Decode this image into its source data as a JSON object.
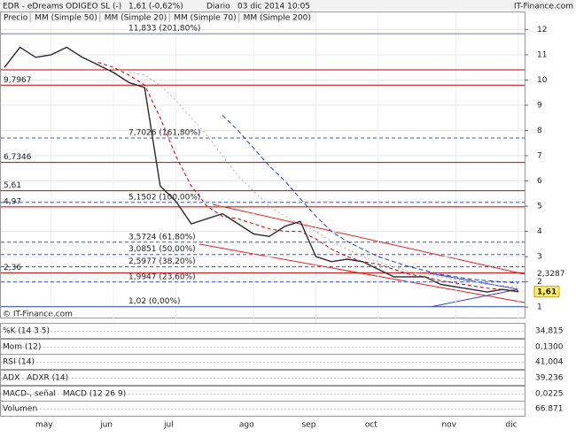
{
  "header": {
    "title": "EDR - eDreams ODIGEO SL (-)",
    "quote": "1,61 (-0,62%)",
    "period": "Diario",
    "date": "03 dic 2014 10:05",
    "source": "IT-Finance.com"
  },
  "copyright": "© IT-Finance.com",
  "chart_data": {
    "type": "line",
    "categories": [
      null,
      null,
      null,
      "may",
      null,
      null,
      null,
      "jun",
      null,
      null,
      null,
      "jul",
      null,
      null,
      null,
      null,
      "ago",
      null,
      null,
      null,
      "sep",
      null,
      null,
      null,
      "oct",
      null,
      null,
      null,
      null,
      "nov",
      null,
      null,
      null,
      "dic"
    ],
    "series": [
      {
        "name": "Precio",
        "color": "#2a2a2a",
        "values": [
          10.5,
          11.3,
          10.9,
          11.0,
          11.3,
          10.9,
          10.6,
          10.3,
          9.9,
          9.7,
          5.8,
          5.2,
          4.3,
          4.5,
          4.7,
          4.3,
          3.9,
          3.8,
          4.2,
          4.4,
          3.0,
          2.8,
          2.9,
          2.8,
          2.5,
          2.2,
          2.2,
          2.2,
          1.9,
          1.8,
          1.7,
          1.6,
          1.7,
          1.61
        ]
      },
      {
        "name": "MM (Simple 50)",
        "color": "#b0b0b0",
        "dash": "2,3",
        "values": [
          null,
          null,
          null,
          null,
          null,
          null,
          null,
          null,
          10.3,
          10.2,
          9.8,
          9.2,
          8.5,
          7.8,
          7.0,
          6.2,
          5.6,
          5.0,
          4.6,
          4.3,
          4.0,
          3.6,
          3.3,
          3.0,
          2.8,
          2.6,
          2.4,
          2.3,
          2.2,
          2.1,
          2.0,
          1.9,
          1.85,
          1.8
        ]
      },
      {
        "name": "MM (Simple 20)",
        "color": "#cc0000",
        "dash": "4,3",
        "values": [
          null,
          null,
          null,
          null,
          null,
          null,
          10.7,
          10.5,
          10.2,
          9.8,
          8.5,
          7.0,
          5.8,
          5.0,
          4.6,
          4.5,
          4.3,
          4.1,
          4.0,
          4.0,
          3.7,
          3.3,
          3.0,
          2.8,
          2.7,
          2.5,
          2.3,
          2.2,
          2.05,
          1.95,
          1.85,
          1.75,
          1.7,
          1.65
        ]
      },
      {
        "name": "MM (Simple 70)",
        "color": "#2244bb",
        "dash": "5,3",
        "values": [
          null,
          null,
          null,
          null,
          null,
          null,
          null,
          null,
          null,
          null,
          null,
          null,
          null,
          null,
          8.6,
          8.0,
          7.3,
          6.6,
          6.0,
          5.3,
          4.6,
          4.0,
          3.6,
          3.3,
          3.0,
          2.8,
          2.6,
          2.45,
          2.3,
          2.2,
          2.1,
          2.05,
          2.0,
          1.95
        ]
      },
      {
        "name": "MM (Simple 200)",
        "color": "#228822",
        "dash": "",
        "values": [
          null,
          null,
          null,
          null,
          null,
          null,
          null,
          null,
          null,
          null,
          null,
          null,
          null,
          null,
          null,
          null,
          null,
          null,
          null,
          null,
          null,
          null,
          null,
          null,
          null,
          null,
          null,
          null,
          null,
          null,
          null,
          null,
          null,
          null
        ]
      }
    ],
    "ylim": [
      0.55,
      12.4
    ],
    "yticks": [
      1,
      2,
      3,
      4,
      5,
      6,
      7,
      8,
      9,
      10,
      11,
      12
    ],
    "grid": true,
    "levels": [
      {
        "value": 11.833,
        "label": "11,833 (201,80%)",
        "color": "#7777aa",
        "dash": false
      },
      {
        "value": 10.4,
        "color": "#cc0000",
        "dash": false
      },
      {
        "value": 9.7967,
        "label": "9,7967",
        "color": "#cc0000",
        "dash": false
      },
      {
        "value": 7.7026,
        "label": "7,7026 (161,80%)",
        "color": "#3355cc",
        "dash": true
      },
      {
        "value": 6.7346,
        "label": "6,7346",
        "color": "#cc0000",
        "dash": false
      },
      {
        "value": 5.61,
        "label": "5,61",
        "color": "#cc0000",
        "dash": false
      },
      {
        "value": 5.1502,
        "label": "5,1502 (100,00%)",
        "color": "#3355cc",
        "dash": true
      },
      {
        "value": 4.97,
        "label": "4,97",
        "color": "#cc0000",
        "dash": false
      },
      {
        "value": 3.5724,
        "label": "3,5724 (61,80%)",
        "color": "#3355cc",
        "dash": true
      },
      {
        "value": 3.0851,
        "label": "3,0851 (50,00%)",
        "color": "#3355cc",
        "dash": true
      },
      {
        "value": 2.5977,
        "label": "2,5977 (38,20%)",
        "color": "#3355cc",
        "dash": true
      },
      {
        "value": 2.36,
        "label": "2,36",
        "color": "#cc0000",
        "dash": false
      },
      {
        "value": 1.9947,
        "label": "1,9947 (23,60%)",
        "color": "#3355cc",
        "dash": true
      },
      {
        "value": 1.02,
        "label": "1,02 (0,00%)",
        "color": "#3355cc",
        "dash": false
      }
    ],
    "price_labels": [
      {
        "value": 2.3287,
        "label": "2,3287",
        "highlight": false
      },
      {
        "value": 1.61,
        "label": "1,61",
        "highlight": true
      }
    ]
  },
  "panels": [
    {
      "labels": [
        "%K (14 3 5)"
      ],
      "last": "34,815"
    },
    {
      "labels": [
        "Mom (12)"
      ],
      "last": "0,1300"
    },
    {
      "labels": [
        "RSI (14)"
      ],
      "last": "41,004"
    },
    {
      "labels": [
        "ADX",
        "ADXR (14)"
      ],
      "last": "39,236"
    },
    {
      "labels": [
        "MACD-, señal",
        "MACD (12 26 9)"
      ],
      "last": "0,0225"
    },
    {
      "labels": [
        "Volumen"
      ],
      "last": "66.871"
    }
  ]
}
